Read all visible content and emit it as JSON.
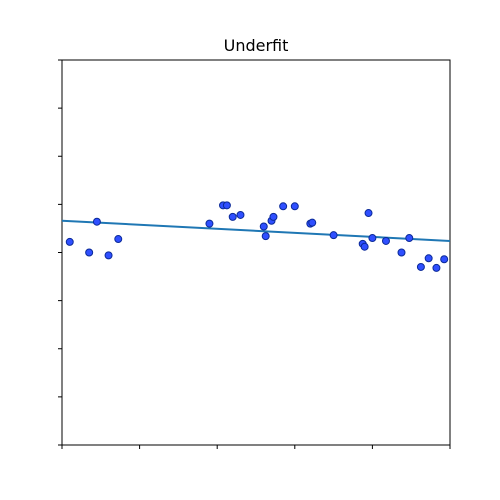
{
  "chart_data": {
    "type": "scatter",
    "title": "Underfit",
    "xlabel": "",
    "ylabel": "",
    "xlim": [
      0,
      1
    ],
    "ylim": [
      -2,
      2
    ],
    "x_ticks": [
      0,
      0.2,
      0.4,
      0.6,
      0.8,
      1.0
    ],
    "y_ticks": [
      -2,
      -1.5,
      -1,
      -0.5,
      0,
      0.5,
      1,
      1.5,
      2
    ],
    "show_tick_labels": false,
    "grid": false,
    "legend": false,
    "colors": {
      "points": "#2f4fff",
      "point_edge": "#0b2a99",
      "line": "#1f77b4"
    },
    "series": [
      {
        "kind": "scatter",
        "x": [
          0.02,
          0.07,
          0.09,
          0.12,
          0.145,
          0.38,
          0.415,
          0.425,
          0.44,
          0.46,
          0.52,
          0.525,
          0.54,
          0.545,
          0.57,
          0.6,
          0.64,
          0.645,
          0.7,
          0.775,
          0.78,
          0.79,
          0.8,
          0.835,
          0.875,
          0.895,
          0.925,
          0.945,
          0.965,
          0.985
        ],
        "y": [
          0.11,
          0.0,
          0.32,
          -0.03,
          0.14,
          0.3,
          0.49,
          0.49,
          0.37,
          0.39,
          0.27,
          0.17,
          0.33,
          0.37,
          0.48,
          0.48,
          0.3,
          0.31,
          0.18,
          0.09,
          0.06,
          0.41,
          0.15,
          0.12,
          0.0,
          0.15,
          -0.15,
          -0.06,
          -0.16,
          -0.07
        ]
      },
      {
        "kind": "line",
        "x": [
          0,
          1
        ],
        "y": [
          0.33,
          0.12
        ]
      }
    ]
  }
}
